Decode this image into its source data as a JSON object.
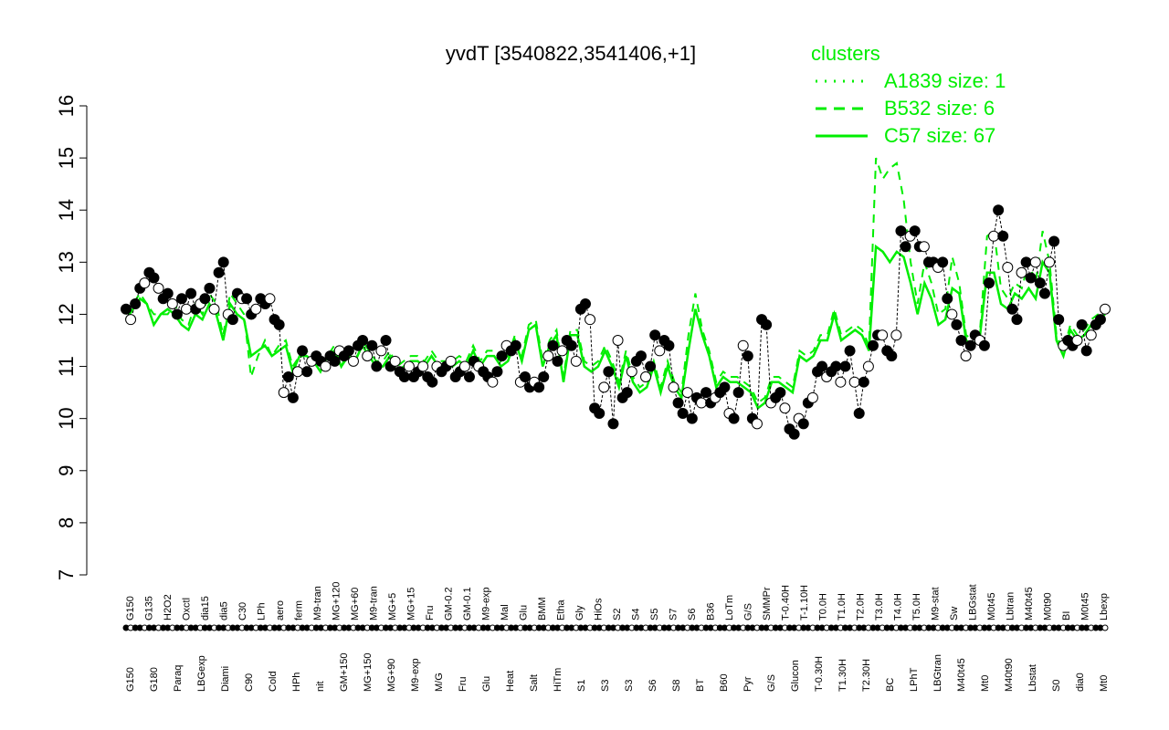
{
  "colors": {
    "accent": "#00ee00",
    "axis": "#000000",
    "background": "#ffffff"
  },
  "chart_data": {
    "type": "line",
    "title": "yvdT [3540822,3541406,+1]",
    "xlabel": "",
    "ylabel": "",
    "ylim": [
      7,
      16
    ],
    "yticks": [
      7,
      8,
      9,
      10,
      11,
      12,
      13,
      14,
      15,
      16
    ],
    "grid": false,
    "legend": {
      "placement": "top-right",
      "title": "clusters",
      "entries": [
        {
          "label": "A1839 size: 1",
          "style": "dotted"
        },
        {
          "label": "B532 size: 6",
          "style": "dashed"
        },
        {
          "label": "C57 size: 67",
          "style": "solid"
        }
      ]
    },
    "x_tick_labels_top": [
      "G150",
      "G135",
      "H2O2",
      "Oxctl",
      "dia15",
      "dia5",
      "C30",
      "LPh",
      "aero",
      "ferm",
      "M9-tran",
      "MG+120",
      "MG+60",
      "M9-tran",
      "MG+5",
      "MG+15",
      "Fru",
      "GM-0.2",
      "GM-0.1",
      "M9-exp",
      "Mal",
      "Glu",
      "BMM",
      "Etha",
      "Gly",
      "HiOs",
      "S2",
      "S4",
      "S5",
      "S7",
      "S6",
      "B36",
      "LoTm",
      "G/S",
      "SMMPr",
      "T-0.40H",
      "T-1.10H",
      "T0.0H",
      "T1.0H",
      "T2.0H",
      "T3.0H",
      "T4.0H",
      "T5.0H",
      "M9-stat",
      "Sw",
      "LBGstat",
      "M0t45",
      "Lbtran",
      "M40t45",
      "M0t90",
      "BI",
      "M0t45",
      "Lbexp"
    ],
    "x_tick_labels_bottom": [
      "G150",
      "G180",
      "Paraq",
      "LBGexp",
      "Diami",
      "C90",
      "Cold",
      "HPh",
      "nit",
      "GM+150",
      "MG+150",
      "MG+90",
      "M9-exp",
      "M/G",
      "Fru",
      "Glu",
      "Heat",
      "Salt",
      "HiTm",
      "S1",
      "S3",
      "S3",
      "S6",
      "S8",
      "BT",
      "B60",
      "Pyr",
      "G/S",
      "Glucon",
      "T-0.30H",
      "T1.30H",
      "T2.30H",
      "BC",
      "LPhT",
      "LBGtran",
      "M40t45",
      "Mt0",
      "M40t90",
      "Lbstat",
      "S0",
      "dia0",
      "Mt0"
    ],
    "series": [
      {
        "name": "C57 size: 67",
        "style": "solid",
        "color": "#00ee00",
        "values": [
          11.9,
          12.1,
          12.3,
          12.2,
          11.8,
          12.0,
          12.1,
          12.0,
          11.8,
          11.7,
          12.0,
          11.9,
          12.2,
          12.0,
          11.5,
          12.2,
          12.0,
          11.9,
          11.2,
          11.3,
          11.4,
          11.2,
          11.3,
          11.4,
          10.9,
          11.2,
          11.2,
          11.1,
          10.9,
          11.2,
          11.3,
          11.0,
          11.2,
          11.1,
          11.4,
          11.2,
          11.0,
          11.0,
          11.2,
          10.9,
          11.0,
          11.1,
          11.1,
          11.0,
          11.2,
          11.0,
          11.0,
          11.0,
          11.1,
          11.0,
          11.3,
          11.0,
          11.2,
          11.2,
          11.0,
          11.1,
          11.5,
          11.1,
          11.7,
          11.8,
          11.0,
          11.4,
          11.6,
          10.7,
          11.6,
          11.6,
          11.0,
          10.9,
          11.0,
          11.3,
          11.0,
          10.6,
          11.2,
          10.7,
          10.5,
          10.6,
          11.0,
          10.5,
          11.0,
          10.6,
          10.4,
          11.3,
          12.1,
          11.6,
          11.2,
          10.6,
          10.8,
          10.7,
          10.7,
          10.6,
          10.5,
          10.2,
          10.3,
          10.7,
          10.7,
          10.6,
          10.5,
          11.2,
          11.1,
          11.2,
          11.5,
          11.5,
          12.0,
          11.5,
          11.6,
          11.7,
          11.6,
          11.3,
          13.3,
          13.2,
          13.0,
          13.2,
          13.1,
          12.6,
          12.0,
          12.6,
          12.3,
          11.8,
          11.9,
          12.5,
          12.4,
          11.5,
          11.4,
          11.6,
          12.8,
          12.8,
          12.2,
          12.1,
          12.4,
          12.3,
          12.5,
          12.3,
          13.0,
          12.8,
          11.5,
          11.2,
          11.7,
          11.5,
          11.6,
          11.8,
          11.9,
          12.0
        ]
      },
      {
        "name": "B532 size: 6",
        "style": "dashed",
        "color": "#00ee00",
        "values": [
          12.0,
          12.2,
          12.4,
          12.2,
          12.0,
          12.0,
          12.0,
          12.2,
          11.9,
          11.8,
          12.2,
          12.0,
          12.4,
          12.2,
          11.6,
          12.4,
          12.2,
          12.0,
          10.8,
          11.2,
          11.5,
          11.2,
          11.4,
          11.5,
          11.0,
          11.2,
          11.3,
          11.1,
          11.0,
          11.2,
          11.4,
          11.0,
          11.3,
          11.1,
          11.5,
          11.3,
          11.1,
          11.1,
          11.3,
          11.0,
          11.1,
          11.2,
          11.2,
          11.1,
          11.3,
          11.1,
          11.1,
          11.1,
          11.2,
          11.1,
          11.4,
          11.1,
          11.3,
          11.3,
          11.1,
          11.2,
          11.6,
          11.2,
          11.8,
          11.9,
          11.1,
          11.5,
          11.7,
          10.8,
          11.7,
          11.7,
          11.1,
          11.0,
          11.1,
          11.4,
          11.1,
          10.7,
          11.3,
          10.8,
          10.6,
          10.7,
          11.1,
          10.6,
          11.1,
          10.7,
          10.5,
          11.6,
          12.4,
          11.7,
          11.3,
          10.7,
          10.9,
          10.8,
          10.8,
          10.7,
          10.6,
          10.3,
          10.4,
          10.8,
          10.8,
          10.7,
          10.6,
          11.3,
          11.2,
          11.3,
          11.6,
          11.6,
          12.1,
          11.6,
          11.7,
          11.8,
          11.7,
          11.4,
          15.0,
          14.6,
          14.8,
          14.9,
          14.2,
          13.0,
          12.2,
          13.0,
          12.6,
          12.0,
          12.1,
          13.1,
          12.6,
          11.6,
          11.5,
          11.7,
          13.5,
          13.6,
          12.5,
          12.3,
          12.6,
          12.5,
          13.0,
          12.6,
          13.6,
          13.0,
          11.6,
          11.3,
          11.8,
          11.6,
          11.7,
          11.9,
          12.0,
          12.1
        ]
      }
    ],
    "points": [
      12.1,
      11.9,
      12.2,
      12.5,
      12.6,
      12.8,
      12.7,
      12.5,
      12.3,
      12.4,
      12.2,
      12.0,
      12.3,
      12.1,
      12.4,
      12.1,
      12.2,
      12.3,
      12.5,
      12.1,
      12.8,
      13.0,
      12.0,
      11.9,
      12.4,
      12.3,
      12.3,
      12.0,
      12.1,
      12.3,
      12.2,
      12.3,
      11.9,
      11.8,
      10.5,
      10.8,
      10.4,
      10.9,
      11.3,
      10.9,
      11.1,
      11.2,
      11.1,
      11.0,
      11.2,
      11.1,
      11.3,
      11.2,
      11.3,
      11.1,
      11.4,
      11.5,
      11.2,
      11.4,
      11.0,
      11.3,
      11.5,
      11.0,
      11.1,
      10.9,
      10.8,
      11.0,
      10.8,
      10.9,
      11.0,
      10.8,
      10.7,
      11.0,
      10.9,
      11.0,
      11.1,
      10.8,
      10.9,
      11.0,
      10.8,
      11.1,
      11.0,
      10.9,
      10.8,
      10.7,
      10.9,
      11.2,
      11.4,
      11.3,
      11.4,
      10.7,
      10.8,
      10.6,
      10.7,
      10.6,
      10.8,
      11.2,
      11.4,
      11.1,
      11.3,
      11.5,
      11.4,
      11.1,
      12.1,
      12.2,
      11.9,
      10.2,
      10.1,
      10.6,
      10.9,
      9.9,
      11.5,
      10.4,
      10.5,
      10.9,
      11.1,
      11.2,
      10.8,
      11.0,
      11.6,
      11.3,
      11.5,
      11.4,
      10.6,
      10.3,
      10.1,
      10.5,
      10.0,
      10.4,
      10.3,
      10.5,
      10.3,
      10.4,
      10.5,
      10.6,
      10.1,
      10.0,
      10.5,
      11.4,
      11.2,
      10.0,
      9.9,
      11.9,
      11.8,
      10.3,
      10.4,
      10.5,
      10.2,
      9.8,
      9.7,
      10.0,
      9.9,
      10.3,
      10.4,
      10.9,
      11.0,
      10.8,
      10.9,
      11.0,
      10.7,
      11.0,
      11.3,
      10.7,
      10.1,
      10.7,
      11.0,
      11.4,
      11.6,
      11.6,
      11.3,
      11.2,
      11.6,
      13.6,
      13.3,
      13.5,
      13.6,
      13.3,
      13.3,
      13.0,
      13.0,
      12.9,
      13.0,
      12.3,
      12.0,
      11.8,
      11.5,
      11.2,
      11.4,
      11.6,
      11.5,
      11.4,
      12.6,
      13.5,
      14.0,
      13.5,
      12.9,
      12.1,
      11.9,
      12.8,
      13.0,
      12.7,
      13.0,
      12.6,
      12.4,
      13.0,
      13.4,
      11.9,
      11.4,
      11.5,
      11.4,
      11.5,
      11.8,
      11.3,
      11.6,
      11.8,
      11.9,
      12.1
    ]
  }
}
